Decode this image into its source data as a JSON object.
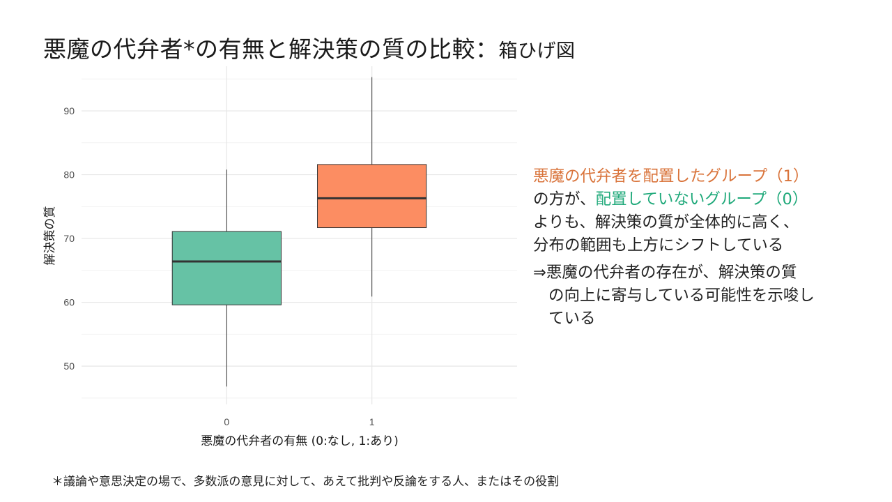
{
  "slide": {
    "title_main": "悪魔の代弁者*の有無と解決策の質の比較：",
    "title_sub": "箱ひげ図",
    "footnote": "＊議論や意思決定の場で、多数派の意見に対して、あえて批判や反論をする人、またはその役割"
  },
  "note": {
    "group1_label": "悪魔の代弁者を配置したグループ（1）",
    "line2_prefix": "の方が、",
    "group0_label": "配置していないグループ（0）",
    "line3": "よりも、解決策の質が全体的に高く、",
    "line4": "分布の範囲も上方にシフトしている",
    "conclusion_1": "⇒悪魔の代弁者の存在が、解決策の質",
    "conclusion_2": "の向上に寄与している可能性を示唆し",
    "conclusion_3": "ている",
    "accent_orange": "#d9733a",
    "accent_green": "#1fa97a"
  },
  "chart_data": {
    "type": "boxplot",
    "categories": [
      "0",
      "1"
    ],
    "xlabel": "悪魔の代弁者の有無 (0:なし, 1:あり)",
    "ylabel": "解決策の質",
    "yticks": [
      50,
      60,
      70,
      80,
      90
    ],
    "ylim": [
      44,
      97
    ],
    "grid": true,
    "boxes": [
      {
        "category": "0",
        "whisker_low": 46.8,
        "q1": 59.6,
        "median": 66.4,
        "q3": 71.1,
        "whisker_high": 80.8,
        "color": "#66c2a5"
      },
      {
        "category": "1",
        "whisker_low": 60.9,
        "q1": 71.7,
        "median": 76.3,
        "q3": 81.6,
        "whisker_high": 95.3,
        "color": "#fc8d62"
      }
    ]
  }
}
